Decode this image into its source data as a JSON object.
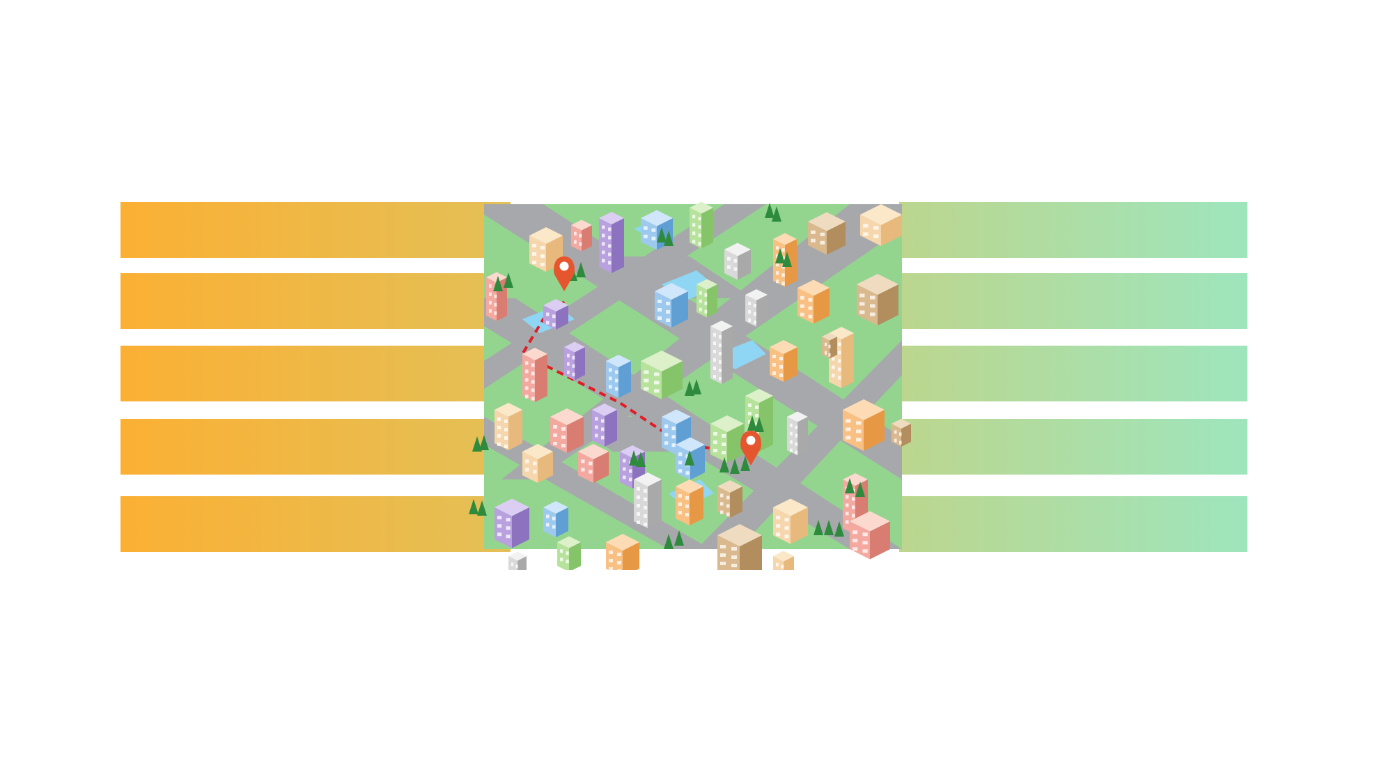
{
  "scene": {
    "description_icon": "isometric-city-map",
    "colors": {
      "band_left_start": "#fbb034",
      "band_left_end": "#e3c057",
      "band_right_start": "#bcd68e",
      "band_right_end": "#9ee5bd",
      "road": "#a7a8ab",
      "ground": "#93d58f",
      "water": "#8fd6f4",
      "pin": "#e5562f",
      "route": "#e11c24"
    },
    "bands_count": 5,
    "markers": [
      "map-pin-icon",
      "map-pin-icon"
    ]
  }
}
